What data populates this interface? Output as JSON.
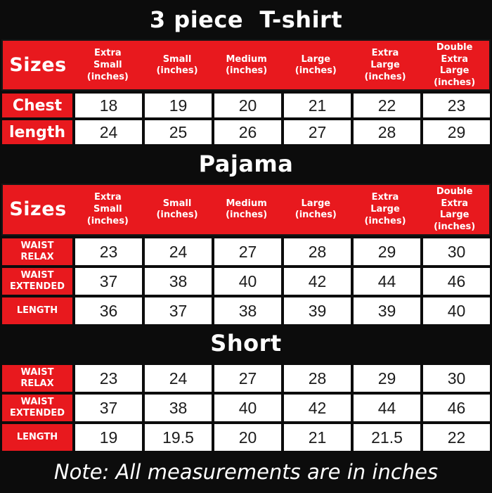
{
  "colors": {
    "accent_red": "#e8191e",
    "background_black": "#0c0c0c",
    "cell_white": "#ffffff"
  },
  "note": "Note: All measurements are in inches",
  "chart_data": [
    {
      "type": "table",
      "title": "3 piece  T-shirt",
      "corner": "Sizes",
      "columns": [
        "Extra\nSmall\n(inches)",
        "Small\n(inches)",
        "Medium\n(inches)",
        "Large\n(inches)",
        "Extra\nLarge\n(inches)",
        "Double\nExtra\nLarge\n(inches)"
      ],
      "rows": [
        {
          "label": "Chest",
          "values": [
            18,
            19,
            20,
            21,
            22,
            23
          ]
        },
        {
          "label": "length",
          "values": [
            24,
            25,
            26,
            27,
            28,
            29
          ]
        }
      ]
    },
    {
      "type": "table",
      "title": "Pajama",
      "corner": "Sizes",
      "columns": [
        "Extra\nSmall\n(inches)",
        "Small\n(inches)",
        "Medium\n(inches)",
        "Large\n(inches)",
        "Extra\nLarge\n(inches)",
        "Double\nExtra\nLarge\n(inches)"
      ],
      "rows": [
        {
          "label": "WAIST\nRELAX",
          "values": [
            23,
            24,
            27,
            28,
            29,
            30
          ]
        },
        {
          "label": "WAIST\nEXTENDED",
          "values": [
            37,
            38,
            40,
            42,
            44,
            46
          ]
        },
        {
          "label": "LENGTH",
          "values": [
            36,
            37,
            38,
            39,
            39,
            40
          ]
        }
      ]
    },
    {
      "type": "table",
      "title": "Short",
      "rows": [
        {
          "label": "WAIST\nRELAX",
          "values": [
            23,
            24,
            27,
            28,
            29,
            30
          ]
        },
        {
          "label": "WAIST\nEXTENDED",
          "values": [
            37,
            38,
            40,
            42,
            44,
            46
          ]
        },
        {
          "label": "LENGTH",
          "values": [
            19,
            19.5,
            20,
            21,
            21.5,
            22
          ]
        }
      ]
    }
  ]
}
